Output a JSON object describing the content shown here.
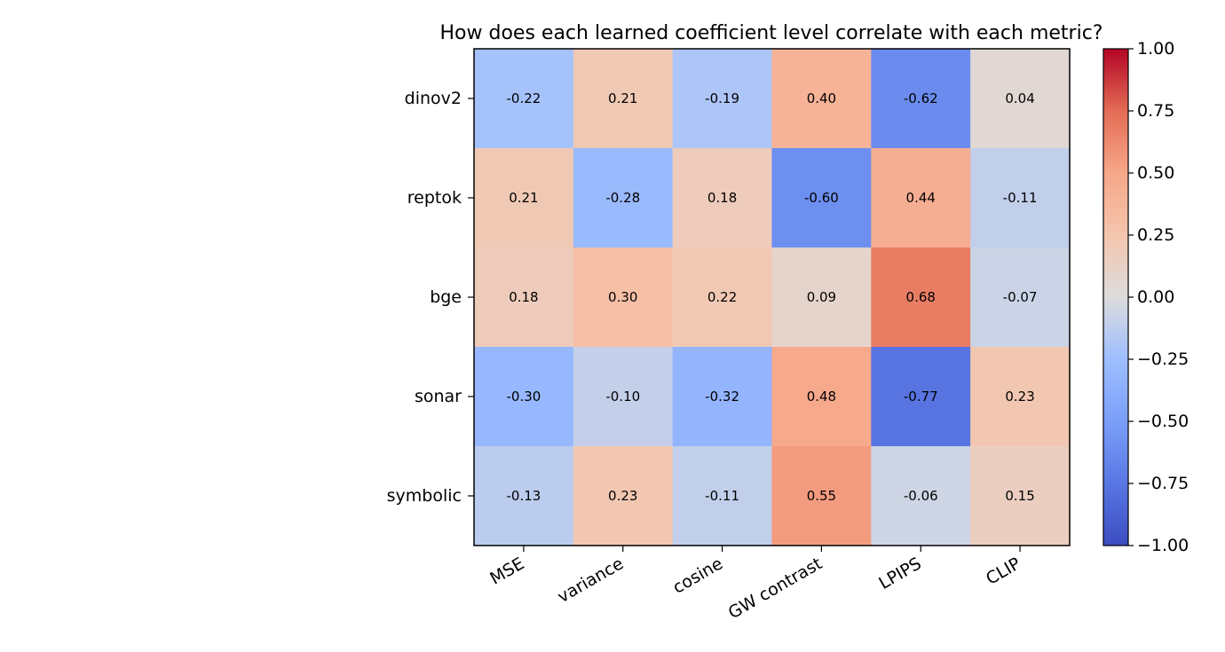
{
  "chart_data": {
    "type": "heatmap",
    "title": "How does each learned coefficient level correlate with each metric?",
    "rows": [
      "dinov2",
      "reptok",
      "bge",
      "sonar",
      "symbolic"
    ],
    "columns": [
      "MSE",
      "variance",
      "cosine",
      "GW contrast",
      "LPIPS",
      "CLIP"
    ],
    "values": [
      [
        -0.22,
        0.21,
        -0.19,
        0.4,
        -0.62,
        0.04
      ],
      [
        0.21,
        -0.28,
        0.18,
        -0.6,
        0.44,
        -0.11
      ],
      [
        0.18,
        0.3,
        0.22,
        0.09,
        0.68,
        -0.07
      ],
      [
        -0.3,
        -0.1,
        -0.32,
        0.48,
        -0.77,
        0.23
      ],
      [
        -0.13,
        0.23,
        -0.11,
        0.55,
        -0.06,
        0.15
      ]
    ],
    "value_labels": [
      [
        "-0.22",
        "0.21",
        "-0.19",
        "0.40",
        "-0.62",
        "0.04"
      ],
      [
        "0.21",
        "-0.28",
        "0.18",
        "-0.60",
        "0.44",
        "-0.11"
      ],
      [
        "0.18",
        "0.30",
        "0.22",
        "0.09",
        "0.68",
        "-0.07"
      ],
      [
        "-0.30",
        "-0.10",
        "-0.32",
        "0.48",
        "-0.77",
        "0.23"
      ],
      [
        "-0.13",
        "0.23",
        "-0.11",
        "0.55",
        "-0.06",
        "0.15"
      ]
    ],
    "colormap": "coolwarm",
    "vmin": -1.0,
    "vmax": 1.0,
    "colorbar": {
      "ticks": [
        1.0,
        0.75,
        0.5,
        0.25,
        0.0,
        -0.25,
        -0.5,
        -0.75,
        -1.0
      ],
      "tick_labels": [
        "1.00",
        "0.75",
        "0.50",
        "0.25",
        "0.00",
        "−0.25",
        "−0.50",
        "−0.75",
        "−1.00"
      ]
    }
  }
}
